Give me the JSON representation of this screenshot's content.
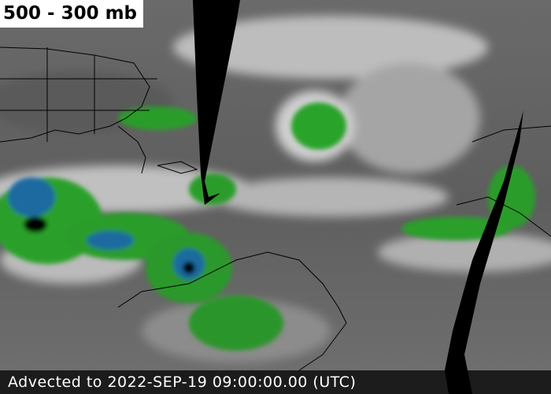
{
  "title": "500 - 300 mb",
  "footer": "Advected to 2022-SEP-19 09:00:00.00 (UTC)"
}
